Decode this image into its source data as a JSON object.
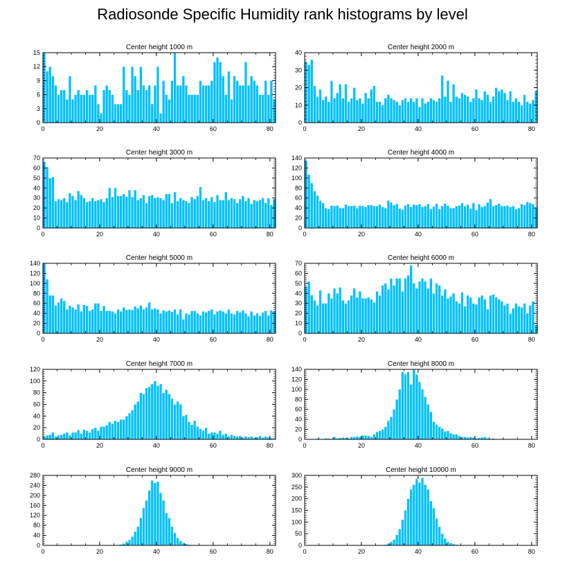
{
  "figure_title": "Radiosonde Specific Humidity rank histograms by level",
  "colors": {
    "bar": "#00c0ff",
    "axis": "#000000"
  },
  "chart_data": [
    {
      "type": "bar",
      "title": "Center height 1000 m",
      "xlim": [
        0,
        82
      ],
      "ylim": [
        0,
        15
      ],
      "xticks": [
        0,
        20,
        40,
        60,
        80
      ],
      "yticks": [
        0,
        3,
        6,
        9,
        12,
        15
      ],
      "values": [
        15,
        11,
        12,
        10,
        8,
        6,
        7,
        7,
        5,
        10,
        5,
        6,
        7,
        6,
        6,
        7,
        6,
        6,
        8,
        4,
        2,
        7,
        8,
        7,
        6,
        4,
        4,
        4,
        12,
        7,
        6,
        12,
        10,
        7,
        12,
        8,
        7,
        8,
        4,
        8,
        12,
        2,
        9,
        6,
        5,
        9,
        15,
        8,
        8,
        10,
        8,
        6,
        6,
        6,
        6,
        9,
        8,
        8,
        8,
        9,
        13,
        14,
        13,
        10,
        6,
        11,
        5,
        10,
        9,
        8,
        8,
        13,
        8,
        10,
        9,
        8,
        6,
        6,
        9,
        6,
        9,
        5
      ]
    },
    {
      "type": "bar",
      "title": "Center height 2000 m",
      "xlim": [
        0,
        82
      ],
      "ylim": [
        0,
        40
      ],
      "xticks": [
        0,
        20,
        40,
        60,
        80
      ],
      "yticks": [
        0,
        10,
        20,
        30,
        40
      ],
      "values": [
        35,
        33,
        36,
        21,
        15,
        19,
        13,
        15,
        12,
        24,
        14,
        17,
        22,
        14,
        22,
        12,
        14,
        20,
        13,
        14,
        11,
        17,
        14,
        19,
        21,
        12,
        12,
        10,
        14,
        16,
        14,
        13,
        12,
        10,
        13,
        14,
        12,
        14,
        12,
        14,
        9,
        14,
        11,
        12,
        14,
        13,
        12,
        14,
        27,
        15,
        24,
        12,
        22,
        15,
        14,
        17,
        16,
        15,
        12,
        14,
        19,
        14,
        13,
        18,
        16,
        12,
        15,
        20,
        18,
        19,
        17,
        13,
        18,
        12,
        14,
        12,
        10,
        16,
        12,
        11,
        13,
        18
      ]
    },
    {
      "type": "bar",
      "title": "Center height 3000 m",
      "xlim": [
        0,
        82
      ],
      "ylim": [
        0,
        70
      ],
      "xticks": [
        0,
        20,
        40,
        60,
        80
      ],
      "yticks": [
        0,
        10,
        20,
        30,
        40,
        50,
        60,
        70
      ],
      "values": [
        66,
        61,
        50,
        51,
        27,
        29,
        28,
        30,
        26,
        35,
        32,
        28,
        37,
        33,
        30,
        26,
        27,
        30,
        27,
        28,
        29,
        26,
        30,
        40,
        31,
        40,
        32,
        32,
        34,
        31,
        38,
        31,
        38,
        28,
        30,
        33,
        25,
        32,
        33,
        30,
        31,
        30,
        28,
        34,
        34,
        25,
        36,
        27,
        30,
        28,
        27,
        25,
        31,
        29,
        32,
        41,
        28,
        30,
        27,
        31,
        26,
        33,
        28,
        28,
        36,
        28,
        30,
        29,
        25,
        29,
        32,
        27,
        30,
        24,
        28,
        27,
        28,
        30,
        25,
        30,
        23,
        29
      ]
    },
    {
      "type": "bar",
      "title": "Center height 4000 m",
      "xlim": [
        0,
        82
      ],
      "ylim": [
        0,
        140
      ],
      "xticks": [
        0,
        20,
        40,
        60,
        80
      ],
      "yticks": [
        0,
        20,
        40,
        60,
        80,
        100,
        120,
        140
      ],
      "values": [
        135,
        107,
        90,
        74,
        65,
        55,
        50,
        40,
        38,
        45,
        44,
        45,
        40,
        40,
        47,
        44,
        44,
        45,
        40,
        45,
        44,
        42,
        46,
        46,
        44,
        44,
        47,
        42,
        40,
        55,
        51,
        46,
        48,
        39,
        37,
        45,
        48,
        42,
        47,
        46,
        48,
        42,
        44,
        48,
        38,
        43,
        49,
        38,
        44,
        49,
        45,
        40,
        40,
        44,
        45,
        50,
        44,
        47,
        39,
        50,
        36,
        48,
        42,
        44,
        51,
        58,
        44,
        46,
        49,
        44,
        44,
        45,
        42,
        44,
        38,
        40,
        48,
        46,
        52,
        50,
        48,
        41
      ]
    },
    {
      "type": "bar",
      "title": "Center height 5000 m",
      "xlim": [
        0,
        82
      ],
      "ylim": [
        0,
        140
      ],
      "xticks": [
        0,
        20,
        40,
        60,
        80
      ],
      "yticks": [
        0,
        20,
        40,
        60,
        80,
        100,
        120,
        140
      ],
      "values": [
        140,
        108,
        76,
        76,
        56,
        62,
        70,
        65,
        48,
        56,
        52,
        48,
        58,
        44,
        57,
        55,
        45,
        48,
        60,
        60,
        45,
        55,
        45,
        45,
        44,
        40,
        48,
        44,
        52,
        47,
        48,
        47,
        54,
        50,
        56,
        48,
        52,
        62,
        48,
        50,
        48,
        40,
        46,
        44,
        46,
        43,
        48,
        38,
        48,
        28,
        40,
        38,
        45,
        45,
        40,
        36,
        44,
        42,
        45,
        48,
        38,
        44,
        46,
        44,
        40,
        48,
        40,
        38,
        45,
        42,
        46,
        40,
        34,
        44,
        36,
        40,
        35,
        42,
        45,
        36,
        46,
        44
      ]
    },
    {
      "type": "bar",
      "title": "Center height 6000 m",
      "xlim": [
        0,
        82
      ],
      "ylim": [
        0,
        70
      ],
      "xticks": [
        0,
        20,
        40,
        60,
        80
      ],
      "yticks": [
        0,
        10,
        20,
        30,
        40,
        50,
        60,
        70
      ],
      "values": [
        47,
        52,
        38,
        33,
        28,
        43,
        30,
        30,
        40,
        35,
        45,
        40,
        46,
        33,
        30,
        33,
        38,
        45,
        36,
        42,
        35,
        35,
        36,
        34,
        31,
        42,
        38,
        48,
        50,
        44,
        55,
        48,
        55,
        55,
        42,
        55,
        58,
        68,
        50,
        45,
        52,
        55,
        52,
        45,
        55,
        40,
        50,
        48,
        38,
        44,
        35,
        37,
        40,
        32,
        30,
        41,
        27,
        38,
        36,
        30,
        29,
        36,
        38,
        34,
        24,
        38,
        39,
        36,
        34,
        32,
        28,
        30,
        20,
        25,
        30,
        27,
        26,
        30,
        20,
        28,
        32,
        8
      ]
    },
    {
      "type": "bar",
      "title": "Center height 7000 m",
      "xlim": [
        0,
        82
      ],
      "ylim": [
        0,
        120
      ],
      "xticks": [
        0,
        20,
        40,
        60,
        80
      ],
      "yticks": [
        0,
        20,
        40,
        60,
        80,
        100,
        120
      ],
      "values": [
        5,
        7,
        8,
        12,
        5,
        7,
        8,
        10,
        12,
        7,
        12,
        12,
        16,
        10,
        17,
        15,
        12,
        18,
        20,
        15,
        22,
        22,
        24,
        30,
        27,
        32,
        30,
        34,
        34,
        40,
        45,
        50,
        60,
        65,
        80,
        78,
        88,
        90,
        95,
        100,
        92,
        95,
        80,
        85,
        78,
        70,
        60,
        65,
        60,
        40,
        42,
        30,
        25,
        32,
        22,
        18,
        15,
        20,
        10,
        12,
        12,
        10,
        15,
        8,
        10,
        5,
        8,
        6,
        5,
        6,
        3,
        5,
        4,
        5,
        3,
        4,
        6,
        3,
        5,
        4,
        2,
        2
      ]
    },
    {
      "type": "bar",
      "title": "Center height 8000 m",
      "xlim": [
        0,
        82
      ],
      "ylim": [
        0,
        140
      ],
      "xticks": [
        0,
        20,
        40,
        60,
        80
      ],
      "yticks": [
        0,
        20,
        40,
        60,
        80,
        100,
        120,
        140
      ],
      "values": [
        0,
        0,
        1,
        1,
        2,
        1,
        1,
        2,
        2,
        1,
        5,
        2,
        3,
        4,
        3,
        2,
        5,
        5,
        6,
        5,
        8,
        8,
        7,
        5,
        10,
        15,
        17,
        20,
        25,
        37,
        45,
        60,
        80,
        100,
        135,
        130,
        135,
        110,
        140,
        130,
        115,
        100,
        85,
        70,
        55,
        35,
        30,
        25,
        22,
        16,
        17,
        12,
        10,
        10,
        7,
        5,
        5,
        4,
        5,
        4,
        2,
        3,
        4,
        5,
        2,
        1,
        2,
        1,
        0,
        1,
        0,
        0,
        0,
        0,
        0,
        0,
        0,
        0,
        0,
        0,
        0,
        0
      ]
    },
    {
      "type": "bar",
      "title": "Center height 9000 m",
      "xlim": [
        0,
        82
      ],
      "ylim": [
        0,
        280
      ],
      "xticks": [
        0,
        20,
        40,
        60,
        80
      ],
      "yticks": [
        0,
        40,
        80,
        120,
        160,
        200,
        240,
        280
      ],
      "values": [
        0,
        0,
        0,
        0,
        0,
        0,
        0,
        0,
        0,
        0,
        0,
        0,
        0,
        0,
        0,
        0,
        0,
        0,
        0,
        0,
        0,
        0,
        0,
        0,
        0,
        1,
        2,
        4,
        8,
        15,
        22,
        35,
        55,
        75,
        110,
        150,
        180,
        220,
        260,
        250,
        255,
        210,
        180,
        130,
        110,
        75,
        50,
        30,
        18,
        10,
        6,
        3,
        2,
        1,
        1,
        0,
        0,
        0,
        0,
        0,
        0,
        0,
        0,
        0,
        0,
        0,
        0,
        0,
        0,
        0,
        0,
        0,
        0,
        0,
        0,
        0,
        0,
        0,
        0,
        0,
        0,
        0
      ]
    },
    {
      "type": "bar",
      "title": "Center height 10000 m",
      "xlim": [
        0,
        82
      ],
      "ylim": [
        0,
        300
      ],
      "xticks": [
        0,
        20,
        40,
        60,
        80
      ],
      "yticks": [
        0,
        50,
        100,
        150,
        200,
        250,
        300
      ],
      "values": [
        0,
        0,
        0,
        0,
        0,
        0,
        0,
        0,
        0,
        0,
        0,
        0,
        0,
        0,
        0,
        0,
        0,
        0,
        0,
        0,
        0,
        0,
        0,
        0,
        0,
        0,
        0,
        1,
        3,
        8,
        15,
        25,
        45,
        70,
        110,
        150,
        200,
        240,
        260,
        285,
        270,
        290,
        260,
        240,
        190,
        160,
        115,
        80,
        50,
        30,
        15,
        10,
        6,
        3,
        2,
        1,
        1,
        0,
        0,
        0,
        0,
        0,
        0,
        0,
        0,
        0,
        0,
        0,
        0,
        0,
        0,
        0,
        0,
        0,
        0,
        0,
        0,
        0,
        0,
        0,
        0,
        0
      ]
    }
  ]
}
